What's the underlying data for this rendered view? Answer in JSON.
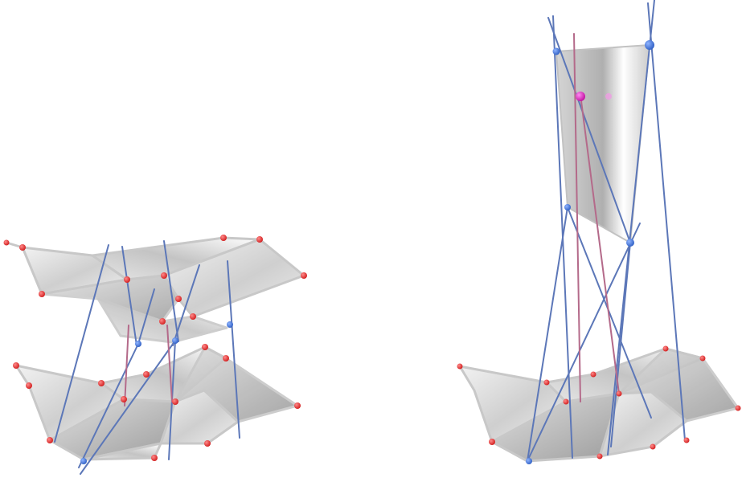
{
  "figure": {
    "panels": [
      {
        "id": "left",
        "kind": "two-layer quad-mesh with connecting lines"
      },
      {
        "id": "right",
        "kind": "single quad above quad-mesh strip with converging lines"
      }
    ],
    "colors": {
      "background": "#ffffff",
      "surface_fill": "#d8d8d8",
      "surface_edge": "#c9c9c9",
      "line_blue": "#5c77b8",
      "line_red": "#b46a8a",
      "vertex_red": "#e3262a",
      "vertex_blue": "#3a6fd0",
      "point_magenta": "#d11fc2"
    }
  }
}
